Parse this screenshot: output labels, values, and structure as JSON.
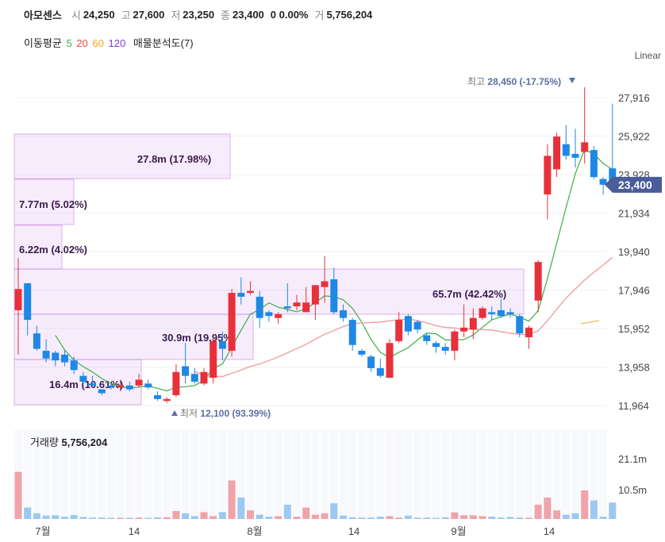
{
  "header": {
    "name": "아모센스",
    "open_label": "시",
    "open": "24,250",
    "high_label": "고",
    "high": "27,600",
    "low_label": "저",
    "low": "23,250",
    "close_label": "종",
    "close": "23,400",
    "change": "0 0.00%",
    "volume_label": "거",
    "volume": "5,756,204"
  },
  "legend": {
    "ma_label": "이동평균",
    "ma": [
      {
        "text": "5",
        "color": "#3cb043"
      },
      {
        "text": "20",
        "color": "#e84a4a"
      },
      {
        "text": "60",
        "color": "#f5a623"
      },
      {
        "text": "120",
        "color": "#7b3fe4"
      }
    ],
    "profile_label": "매물분석도(7)"
  },
  "scale_mode": "Linear",
  "chart_data": {
    "type": "candlestick",
    "y_ticks": [
      "27,916",
      "25,922",
      "23,928",
      "21,934",
      "19,940",
      "17,946",
      "15,952",
      "13,958",
      "11,964"
    ],
    "current_price_label": "23,400",
    "x_ticks": [
      "7월",
      "14",
      "8월",
      "14",
      "9월",
      "14"
    ],
    "high_annotation": {
      "prefix": "최고",
      "text": "28,450 (-17.75%)"
    },
    "low_annotation": {
      "prefix": "최저",
      "text": "12,100 (93.39%)"
    },
    "volume_title": "거래량",
    "volume_value": "5,756,204",
    "volume_ticks": [
      "21.1m",
      "10.5m"
    ],
    "volume_profile": [
      {
        "text": "27.8m (17.98%)",
        "value_m": 27.8
      },
      {
        "text": "7.77m (5.02%)",
        "value_m": 7.77
      },
      {
        "text": "6.22m (4.02%)",
        "value_m": 6.22
      },
      {
        "text": "65.7m (42.42%)",
        "value_m": 65.7
      },
      {
        "text": "30.9m (19.95%)",
        "value_m": 30.9
      },
      {
        "text": "16.4m (10.61%)",
        "value_m": 16.4
      }
    ],
    "candles": [
      {
        "o": 16900,
        "h": 19600,
        "l": 14600,
        "c": 18000,
        "v": 16.5
      },
      {
        "o": 18300,
        "h": 18300,
        "l": 15600,
        "c": 16400,
        "v": 4.0
      },
      {
        "o": 15700,
        "h": 16100,
        "l": 14800,
        "c": 14900,
        "v": 2.0
      },
      {
        "o": 14800,
        "h": 15400,
        "l": 14200,
        "c": 14400,
        "v": 1.2
      },
      {
        "o": 14700,
        "h": 14800,
        "l": 14000,
        "c": 14300,
        "v": 1.3
      },
      {
        "o": 14600,
        "h": 14800,
        "l": 14000,
        "c": 14200,
        "v": 0.8
      },
      {
        "o": 14300,
        "h": 14500,
        "l": 13600,
        "c": 13800,
        "v": 1.4
      },
      {
        "o": 13500,
        "h": 13700,
        "l": 12900,
        "c": 13200,
        "v": 0.7
      },
      {
        "o": 13100,
        "h": 13500,
        "l": 12900,
        "c": 13000,
        "v": 0.5
      },
      {
        "o": 12800,
        "h": 12800,
        "l": 12500,
        "c": 12600,
        "v": 0.5
      },
      {
        "o": 13000,
        "h": 13100,
        "l": 12800,
        "c": 12900,
        "v": 0.4
      },
      {
        "o": 12900,
        "h": 13300,
        "l": 12700,
        "c": 13000,
        "v": 0.4
      },
      {
        "o": 13000,
        "h": 13200,
        "l": 12700,
        "c": 12800,
        "v": 0.4
      },
      {
        "o": 13000,
        "h": 13600,
        "l": 12900,
        "c": 13300,
        "v": 0.5
      },
      {
        "o": 13100,
        "h": 13300,
        "l": 12800,
        "c": 12900,
        "v": 0.4
      },
      {
        "o": 12500,
        "h": 12700,
        "l": 12200,
        "c": 12300,
        "v": 0.6
      },
      {
        "o": 12200,
        "h": 12400,
        "l": 12100,
        "c": 12300,
        "v": 0.6
      },
      {
        "o": 12500,
        "h": 14100,
        "l": 12400,
        "c": 13700,
        "v": 2.8
      },
      {
        "o": 14000,
        "h": 15200,
        "l": 13100,
        "c": 13500,
        "v": 2.0
      },
      {
        "o": 13600,
        "h": 13900,
        "l": 13100,
        "c": 13200,
        "v": 1.0
      },
      {
        "o": 13100,
        "h": 13900,
        "l": 13000,
        "c": 13700,
        "v": 2.4
      },
      {
        "o": 13400,
        "h": 15500,
        "l": 13100,
        "c": 15300,
        "v": 1.0
      },
      {
        "o": 15300,
        "h": 15800,
        "l": 14300,
        "c": 14900,
        "v": 2.4
      },
      {
        "o": 14800,
        "h": 18000,
        "l": 14500,
        "c": 17800,
        "v": 13.5
      },
      {
        "o": 17800,
        "h": 18600,
        "l": 17200,
        "c": 17600,
        "v": 7.5
      },
      {
        "o": 17800,
        "h": 18400,
        "l": 17700,
        "c": 17900,
        "v": 3.0
      },
      {
        "o": 17600,
        "h": 17900,
        "l": 16000,
        "c": 16500,
        "v": 1.5
      },
      {
        "o": 16800,
        "h": 16900,
        "l": 16300,
        "c": 16600,
        "v": 0.8
      },
      {
        "o": 16500,
        "h": 16800,
        "l": 16200,
        "c": 16700,
        "v": 1.0
      },
      {
        "o": 17100,
        "h": 18300,
        "l": 16800,
        "c": 17000,
        "v": 5.0
      },
      {
        "o": 17100,
        "h": 17700,
        "l": 16900,
        "c": 17300,
        "v": 0.8
      },
      {
        "o": 16800,
        "h": 18100,
        "l": 16800,
        "c": 17300,
        "v": 4.0
      },
      {
        "o": 17200,
        "h": 18200,
        "l": 16400,
        "c": 18200,
        "v": 1.5
      },
      {
        "o": 18100,
        "h": 19700,
        "l": 17300,
        "c": 18400,
        "v": 2.0
      },
      {
        "o": 18500,
        "h": 19100,
        "l": 16700,
        "c": 16800,
        "v": 5.5
      },
      {
        "o": 16900,
        "h": 17200,
        "l": 16300,
        "c": 16500,
        "v": 1.2
      },
      {
        "o": 16400,
        "h": 16500,
        "l": 14800,
        "c": 15100,
        "v": 0.6
      },
      {
        "o": 14800,
        "h": 14900,
        "l": 14500,
        "c": 14600,
        "v": 0.5
      },
      {
        "o": 14500,
        "h": 14600,
        "l": 13700,
        "c": 13900,
        "v": 0.5
      },
      {
        "o": 13900,
        "h": 14400,
        "l": 13400,
        "c": 13500,
        "v": 0.8
      },
      {
        "o": 13400,
        "h": 15400,
        "l": 13400,
        "c": 15200,
        "v": 1.0
      },
      {
        "o": 15300,
        "h": 16800,
        "l": 15200,
        "c": 16400,
        "v": 0.5
      },
      {
        "o": 16600,
        "h": 16700,
        "l": 15600,
        "c": 15800,
        "v": 1.2
      },
      {
        "o": 16300,
        "h": 16400,
        "l": 15700,
        "c": 15900,
        "v": 0.5
      },
      {
        "o": 15600,
        "h": 15700,
        "l": 15100,
        "c": 15300,
        "v": 0.5
      },
      {
        "o": 15200,
        "h": 15300,
        "l": 14700,
        "c": 15000,
        "v": 0.4
      },
      {
        "o": 15000,
        "h": 15200,
        "l": 14600,
        "c": 14800,
        "v": 0.6
      },
      {
        "o": 14800,
        "h": 15900,
        "l": 14300,
        "c": 15800,
        "v": 2.3
      },
      {
        "o": 15800,
        "h": 17200,
        "l": 15500,
        "c": 16000,
        "v": 1.3
      },
      {
        "o": 15900,
        "h": 17000,
        "l": 15400,
        "c": 16500,
        "v": 1.3
      },
      {
        "o": 16500,
        "h": 17100,
        "l": 16400,
        "c": 17000,
        "v": 1.0
      },
      {
        "o": 16800,
        "h": 17100,
        "l": 16400,
        "c": 16700,
        "v": 0.8
      },
      {
        "o": 16900,
        "h": 17500,
        "l": 16500,
        "c": 16600,
        "v": 0.5
      },
      {
        "o": 16800,
        "h": 17000,
        "l": 16500,
        "c": 16700,
        "v": 0.7
      },
      {
        "o": 16600,
        "h": 16700,
        "l": 15500,
        "c": 15700,
        "v": 0.5
      },
      {
        "o": 15500,
        "h": 16100,
        "l": 14900,
        "c": 16000,
        "v": 0.4
      },
      {
        "o": 17400,
        "h": 19500,
        "l": 16800,
        "c": 19400,
        "v": 5.0
      },
      {
        "o": 22900,
        "h": 25500,
        "l": 21600,
        "c": 24900,
        "v": 7.5
      },
      {
        "o": 24200,
        "h": 26100,
        "l": 23800,
        "c": 25900,
        "v": 3.0
      },
      {
        "o": 25500,
        "h": 26500,
        "l": 24700,
        "c": 24900,
        "v": 1.5
      },
      {
        "o": 25000,
        "h": 26300,
        "l": 24300,
        "c": 24800,
        "v": 2.0
      },
      {
        "o": 25100,
        "h": 28450,
        "l": 24500,
        "c": 25600,
        "v": 10.0
      },
      {
        "o": 25200,
        "h": 25400,
        "l": 23700,
        "c": 23800,
        "v": 6.5
      },
      {
        "o": 23700,
        "h": 23800,
        "l": 22900,
        "c": 23400,
        "v": 0.8
      },
      {
        "o": 24250,
        "h": 27600,
        "l": 23250,
        "c": 23400,
        "v": 5.756
      }
    ]
  }
}
